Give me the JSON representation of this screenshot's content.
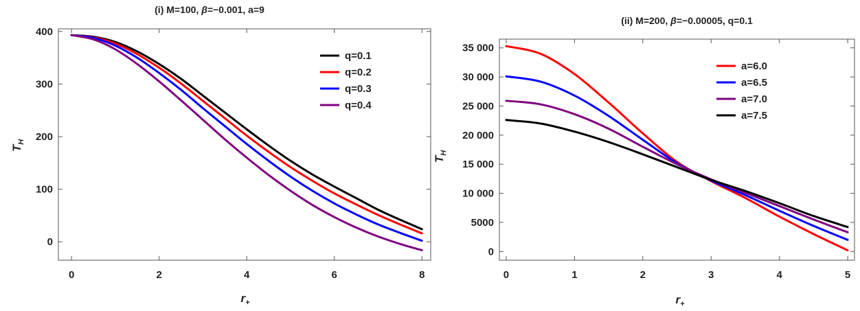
{
  "chart_data": [
    {
      "type": "line",
      "title_prefix": "(i)  M=100, ",
      "title_beta": "β",
      "title_suffix": "=−0.001, a=9",
      "xlabel": "r",
      "xlabel_sub": "+",
      "ylabel": "T",
      "ylabel_sub": "H",
      "xlim": [
        -0.3,
        8.2
      ],
      "ylim": [
        -35,
        405
      ],
      "xticks": [
        0,
        2,
        4,
        6,
        8
      ],
      "xtick_labels": [
        "0",
        "2",
        "4",
        "6",
        "8"
      ],
      "yticks": [
        0,
        100,
        200,
        300,
        400
      ],
      "ytick_labels": [
        "0",
        "100",
        "200",
        "300",
        "400"
      ],
      "legend_position": "top-right",
      "x": [
        0,
        0.5,
        1,
        1.5,
        2,
        2.5,
        3,
        3.5,
        4,
        4.5,
        5,
        5.5,
        6,
        6.5,
        7,
        7.5,
        8
      ],
      "series": [
        {
          "name": "q=0.1",
          "color": "#000000",
          "values": [
            393,
            390,
            380,
            362,
            338,
            310,
            278,
            246,
            214,
            183,
            154,
            128,
            105,
            83,
            61,
            42,
            24
          ]
        },
        {
          "name": "q=0.2",
          "color": "#ff0000",
          "values": [
            393,
            389,
            377,
            357,
            331,
            301,
            268,
            235,
            202,
            171,
            142,
            116,
            92,
            71,
            51,
            33,
            16
          ]
        },
        {
          "name": "q=0.3",
          "color": "#0000ff",
          "values": [
            393,
            388,
            373,
            350,
            321,
            289,
            254,
            220,
            186,
            154,
            124,
            97,
            73,
            52,
            33,
            17,
            2
          ]
        },
        {
          "name": "q=0.4",
          "color": "#800080",
          "values": [
            393,
            385,
            366,
            338,
            305,
            269,
            232,
            195,
            160,
            127,
            97,
            70,
            47,
            27,
            10,
            -4,
            -16
          ]
        }
      ]
    },
    {
      "type": "line",
      "title_prefix": "(ii)  M=200, ",
      "title_beta": "β",
      "title_suffix": "=−0.00005, q=0.1",
      "xlabel": "r",
      "xlabel_sub": "+",
      "ylabel": "T",
      "ylabel_sub": "H",
      "xlim": [
        -0.1,
        5.1
      ],
      "ylim": [
        -1500,
        36500
      ],
      "xticks": [
        0,
        1,
        2,
        3,
        4,
        5
      ],
      "xtick_labels": [
        "0",
        "1",
        "2",
        "3",
        "4",
        "5"
      ],
      "yticks": [
        0,
        5000,
        10000,
        15000,
        20000,
        25000,
        30000,
        35000
      ],
      "ytick_labels": [
        "0",
        "5000",
        "10 000",
        "15 000",
        "20 000",
        "25 000",
        "30 000",
        "35 000"
      ],
      "legend_position": "top-right",
      "x": [
        0,
        0.5,
        1,
        1.5,
        2,
        2.5,
        3,
        3.5,
        4,
        4.5,
        5
      ],
      "series": [
        {
          "name": "a=6.0",
          "color": "#ff0000",
          "values": [
            35300,
            34000,
            30500,
            25600,
            20300,
            15400,
            12100,
            9200,
            6000,
            3000,
            200
          ]
        },
        {
          "name": "a=6.5",
          "color": "#0000ff",
          "values": [
            30100,
            29200,
            26800,
            23300,
            19200,
            15200,
            12200,
            9700,
            7000,
            4400,
            2000
          ]
        },
        {
          "name": "a=7.0",
          "color": "#800080",
          "values": [
            25900,
            25300,
            23600,
            21100,
            18000,
            15000,
            12400,
            10100,
            7800,
            5500,
            3300
          ]
        },
        {
          "name": "a=7.5",
          "color": "#000000",
          "values": [
            22600,
            22000,
            20600,
            18800,
            16700,
            14500,
            12300,
            10400,
            8300,
            6100,
            4200
          ]
        }
      ]
    }
  ]
}
